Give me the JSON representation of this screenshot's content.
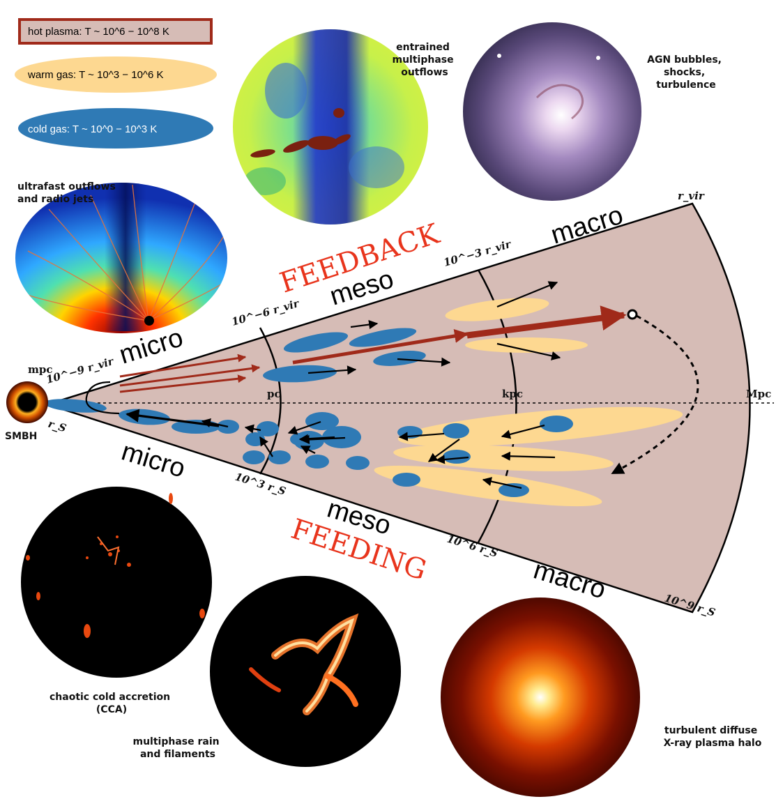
{
  "legend": {
    "hot": "hot plasma: T ~ 10^6 − 10^8 K",
    "warm": "warm gas: T ~ 10^3 − 10^6 K",
    "cold": "cold gas: T ~ 10^0 − 10^3 K"
  },
  "feedback_title": "FEEDBACK",
  "feeding_title": "FEEDING",
  "scales": {
    "micro_top": "micro",
    "meso_top": "meso",
    "macro_top": "macro",
    "micro_bottom": "micro",
    "meso_bottom": "meso",
    "macro_bottom": "macro"
  },
  "distance_labels": {
    "mpc": "mpc",
    "pc": "pc",
    "kpc": "kpc",
    "Mpc": "Mpc",
    "rs": "r_S",
    "smbh": "SMBH",
    "rvir_min9": "10^−9 r_vir",
    "rvir_min6": "10^−6 r_vir",
    "rvir_min3": "10^−3 r_vir",
    "rvir": "r_vir",
    "rs_3": "10^3 r_S",
    "rs_6": "10^6 r_S",
    "rs_9": "10^9 r_S"
  },
  "captions": {
    "ultrafast": [
      "ultrafast outflows",
      "and radio jets"
    ],
    "entrained": [
      "entrained",
      "multiphase",
      "outflows"
    ],
    "agn": [
      "AGN bubbles,",
      "shocks,",
      "turbulence"
    ],
    "cca": [
      "chaotic cold accretion",
      "(CCA)"
    ],
    "rain": [
      "multiphase rain",
      "and filaments"
    ],
    "halo": [
      "turbulent diffuse",
      "X-ray plasma halo"
    ]
  },
  "colors": {
    "cone": "#d6bcb6",
    "cold": "#2f7ab5",
    "warm": "#fdd891",
    "hot_arrow": "#a02a1a",
    "title_red": "#e8341c"
  }
}
